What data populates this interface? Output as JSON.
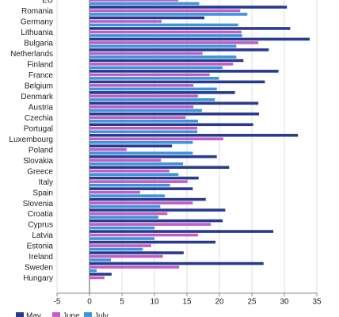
{
  "chart_data": {
    "type": "bar",
    "orientation": "horizontal",
    "categories": [
      "EU",
      "Romania",
      "Germany",
      "Lithuania",
      "Bulgaria",
      "Netherlands",
      "Finland",
      "France",
      "Belgium",
      "Denmark",
      "Austria",
      "Czechia",
      "Portugal",
      "Luxembourg",
      "Poland",
      "Slovakia",
      "Greece",
      "Italy",
      "Spain",
      "Slovenia",
      "Croatia",
      "Cyprus",
      "Latvia",
      "Estonia",
      "Ireland",
      "Sweden",
      "Hungary"
    ],
    "series": [
      {
        "name": "May",
        "color": "#283a8e",
        "values": [
          null,
          30.4,
          17.7,
          30.9,
          33.9,
          27.6,
          23.7,
          29.1,
          27.0,
          22.4,
          26.0,
          26.1,
          25.2,
          32.1,
          12.7,
          19.6,
          21.5,
          16.8,
          15.9,
          17.9,
          20.9,
          20.5,
          28.3,
          19.4,
          14.5,
          26.8,
          3.4
        ]
      },
      {
        "name": "June",
        "color": "#c05ec4",
        "values": [
          13.7,
          23.2,
          11.1,
          23.4,
          26.0,
          17.4,
          22.1,
          18.5,
          16.0,
          16.7,
          16.0,
          14.8,
          16.6,
          20.6,
          5.7,
          11.0,
          12.3,
          15.1,
          7.8,
          15.9,
          12.0,
          18.7,
          16.7,
          9.5,
          11.3,
          13.8,
          2.3
        ]
      },
      {
        "name": "July",
        "color": "#3b94dc",
        "values": [
          16.9,
          24.3,
          22.9,
          23.5,
          22.6,
          22.6,
          20.5,
          19.9,
          19.6,
          19.3,
          17.3,
          16.7,
          16.6,
          15.9,
          15.9,
          14.4,
          13.7,
          12.4,
          11.6,
          10.9,
          10.6,
          10.0,
          10.0,
          8.2,
          3.3,
          1.1,
          null
        ]
      }
    ],
    "xlim": [
      -5,
      35
    ],
    "xticks": [
      -5,
      0,
      5,
      10,
      15,
      20,
      25,
      30,
      35
    ],
    "grid": true,
    "legend": "bottom"
  }
}
